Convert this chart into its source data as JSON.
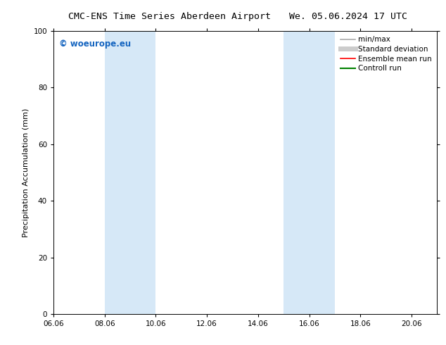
{
  "title_left": "CMC-ENS Time Series Aberdeen Airport",
  "title_right": "We. 05.06.2024 17 UTC",
  "ylabel": "Precipitation Accumulation (mm)",
  "ylim": [
    0,
    100
  ],
  "yticks": [
    0,
    20,
    40,
    60,
    80,
    100
  ],
  "xlim_start": 6.06,
  "xlim_end": 21.06,
  "xtick_labels": [
    "06.06",
    "08.06",
    "10.06",
    "12.06",
    "14.06",
    "16.06",
    "18.06",
    "20.06"
  ],
  "xtick_positions": [
    6.06,
    8.06,
    10.06,
    12.06,
    14.06,
    16.06,
    18.06,
    20.06
  ],
  "shaded_regions": [
    {
      "x_start": 8.06,
      "x_end": 10.06
    },
    {
      "x_start": 15.06,
      "x_end": 17.06
    }
  ],
  "shaded_color": "#d6e8f7",
  "watermark_text": "© woeurope.eu",
  "watermark_color": "#1565c0",
  "legend_entries": [
    {
      "label": "min/max",
      "color": "#aaaaaa",
      "lw": 1.2,
      "style": "solid"
    },
    {
      "label": "Standard deviation",
      "color": "#cccccc",
      "lw": 5,
      "style": "solid"
    },
    {
      "label": "Ensemble mean run",
      "color": "red",
      "lw": 1.2,
      "style": "solid"
    },
    {
      "label": "Controll run",
      "color": "green",
      "lw": 1.5,
      "style": "solid"
    }
  ],
  "bg_color": "#ffffff",
  "font_size_title": 9.5,
  "font_size_axis": 8,
  "font_size_tick": 7.5,
  "font_size_legend": 7.5,
  "font_size_watermark": 8.5
}
